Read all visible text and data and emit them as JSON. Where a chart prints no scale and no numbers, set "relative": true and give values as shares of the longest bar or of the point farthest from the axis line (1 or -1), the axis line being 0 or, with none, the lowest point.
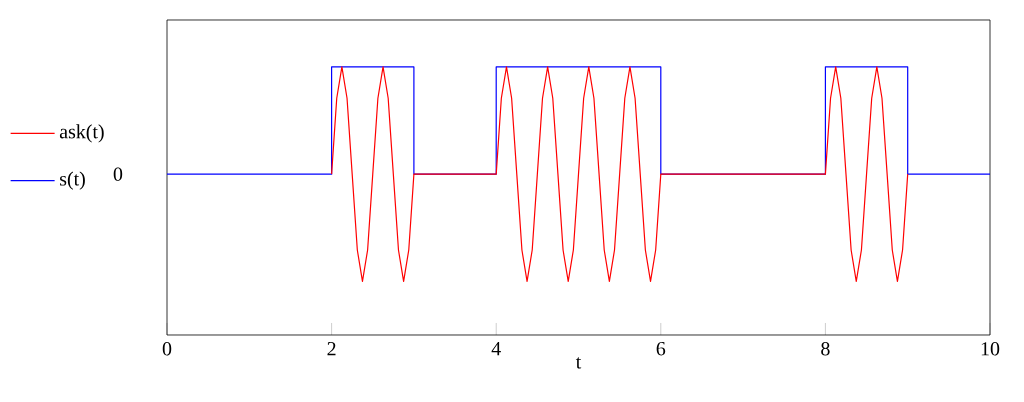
{
  "chart_data": {
    "type": "line",
    "relative": true,
    "xlabel": "t",
    "xlim": [
      0,
      10
    ],
    "xticks": [
      0,
      2,
      4,
      6,
      8,
      10
    ],
    "legend": "left",
    "marker": "none",
    "line_style": "solid",
    "annotations": [
      "0"
    ],
    "series": [
      {
        "name": "ask(t)",
        "color": "#ff0000",
        "x": [
          2,
          2.0625,
          2.125,
          2.1875,
          2.25,
          2.3125,
          2.375,
          2.4375,
          2.5,
          2.5625,
          2.625,
          2.6875,
          2.75,
          2.8125,
          2.875,
          2.9375,
          3,
          4,
          4.0625,
          4.125,
          4.1875,
          4.25,
          4.3125,
          4.375,
          4.4375,
          4.5,
          4.5625,
          4.625,
          4.6875,
          4.75,
          4.8125,
          4.875,
          4.9375,
          5,
          5.0625,
          5.125,
          5.1875,
          5.25,
          5.3125,
          5.375,
          5.4375,
          5.5,
          5.5625,
          5.625,
          5.6875,
          5.75,
          5.8125,
          5.875,
          5.9375,
          6,
          8,
          8.0625,
          8.125,
          8.1875,
          8.25,
          8.3125,
          8.375,
          8.4375,
          8.5,
          8.5625,
          8.625,
          8.6875,
          8.75,
          8.8125,
          8.875,
          8.9375,
          9
        ],
        "values": [
          0.6,
          0.883,
          1,
          0.883,
          0.6,
          0.317,
          0.2,
          0.317,
          0.6,
          0.883,
          1,
          0.883,
          0.6,
          0.317,
          0.2,
          0.317,
          0.6,
          0.6,
          0.883,
          1,
          0.883,
          0.6,
          0.317,
          0.2,
          0.317,
          0.6,
          0.883,
          1,
          0.883,
          0.6,
          0.317,
          0.2,
          0.317,
          0.6,
          0.883,
          1,
          0.883,
          0.6,
          0.317,
          0.2,
          0.317,
          0.6,
          0.883,
          1,
          0.883,
          0.6,
          0.317,
          0.2,
          0.317,
          0.6,
          0.6,
          0.883,
          1,
          0.883,
          0.6,
          0.317,
          0.2,
          0.317,
          0.6,
          0.883,
          1,
          0.883,
          0.6,
          0.317,
          0.2,
          0.317,
          0.6
        ]
      },
      {
        "name": "s(t)",
        "color": "#0000ff",
        "type": "step",
        "x": [
          0,
          2,
          3,
          4,
          6,
          8,
          9,
          10
        ],
        "values": [
          0.6,
          1,
          0.6,
          1,
          0.6,
          1,
          0.6,
          0.6
        ]
      }
    ]
  }
}
